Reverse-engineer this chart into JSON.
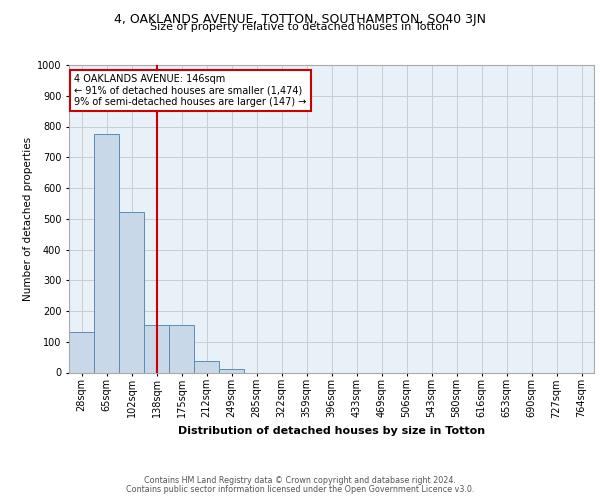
{
  "title_main": "4, OAKLANDS AVENUE, TOTTON, SOUTHAMPTON, SO40 3JN",
  "title_sub": "Size of property relative to detached houses in Totton",
  "xlabel": "Distribution of detached houses by size in Totton",
  "ylabel": "Number of detached properties",
  "bins": [
    "28sqm",
    "65sqm",
    "102sqm",
    "138sqm",
    "175sqm",
    "212sqm",
    "249sqm",
    "285sqm",
    "322sqm",
    "359sqm",
    "396sqm",
    "433sqm",
    "469sqm",
    "506sqm",
    "543sqm",
    "580sqm",
    "616sqm",
    "653sqm",
    "690sqm",
    "727sqm",
    "764sqm"
  ],
  "values": [
    132,
    775,
    523,
    155,
    155,
    37,
    10,
    0,
    0,
    0,
    0,
    0,
    0,
    0,
    0,
    0,
    0,
    0,
    0,
    0,
    0
  ],
  "bar_color": "#c8d8e8",
  "bar_edge_color": "#5b8db8",
  "vline_color": "#cc0000",
  "vline_pos": 3.5,
  "ylim": [
    0,
    1000
  ],
  "yticks": [
    0,
    100,
    200,
    300,
    400,
    500,
    600,
    700,
    800,
    900,
    1000
  ],
  "annotation_title": "4 OAKLANDS AVENUE: 146sqm",
  "annotation_line1": "← 91% of detached houses are smaller (1,474)",
  "annotation_line2": "9% of semi-detached houses are larger (147) →",
  "annotation_box_color": "#ffffff",
  "annotation_box_edge": "#cc0000",
  "footer_line1": "Contains HM Land Registry data © Crown copyright and database right 2024.",
  "footer_line2": "Contains public sector information licensed under the Open Government Licence v3.0.",
  "grid_color": "#cccccc",
  "bg_color": "#e8f0f8",
  "title_main_fontsize": 9,
  "title_sub_fontsize": 8,
  "ylabel_fontsize": 7.5,
  "xlabel_fontsize": 8,
  "tick_fontsize": 7,
  "annotation_fontsize": 7,
  "footer_fontsize": 5.8
}
